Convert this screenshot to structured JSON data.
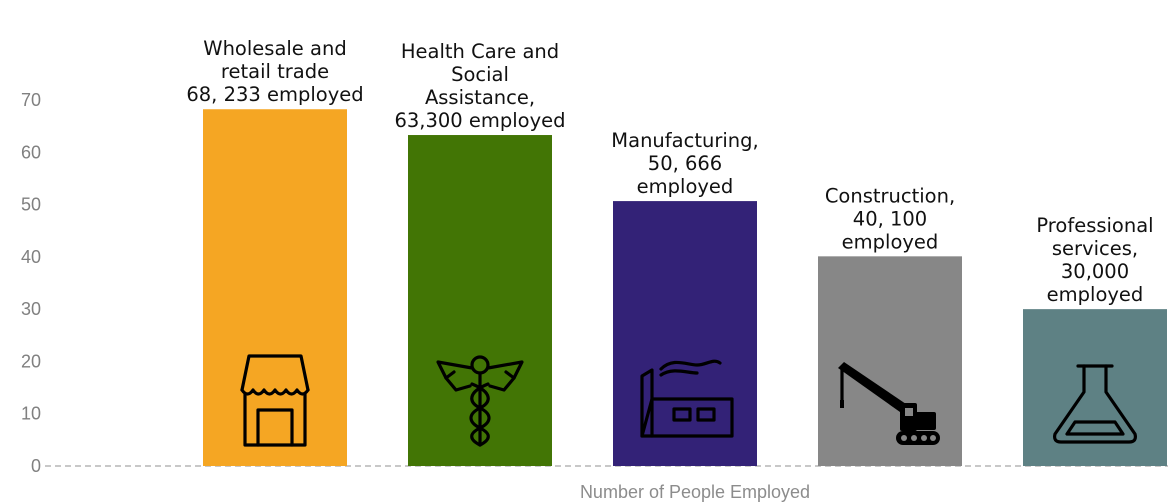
{
  "chart_data": {
    "type": "bar",
    "categories": [
      "Wholesale and retail trade",
      "Health Care and Social Assistance",
      "Manufacturing",
      "Construction",
      "Professional services"
    ],
    "values": [
      68.233,
      63.3,
      50.666,
      40.1,
      30.0
    ],
    "bar_labels": [
      [
        "Wholesale and",
        "retail trade",
        "68, 233 employed"
      ],
      [
        "Health Care and",
        "Social",
        "Assistance,",
        "63,300 employed"
      ],
      [
        "Manufacturing,",
        "50, 666",
        "employed"
      ],
      [
        "Construction,",
        "40, 100",
        "employed"
      ],
      [
        "Professional",
        "services,",
        "30,000",
        "employed"
      ]
    ],
    "colors": [
      "#f5a623",
      "#427505",
      "#332277",
      "#878787",
      "#5e8184"
    ],
    "icons": [
      "shop-icon",
      "caduceus-icon",
      "factory-icon",
      "crane-icon",
      "flask-icon"
    ],
    "y_ticks": [
      0,
      10,
      20,
      30,
      40,
      50,
      60,
      70
    ],
    "ylim": [
      0,
      70
    ],
    "xlabel": "Number of People Employed",
    "ylabel": "",
    "title": "",
    "grid": false,
    "legend": "none"
  }
}
